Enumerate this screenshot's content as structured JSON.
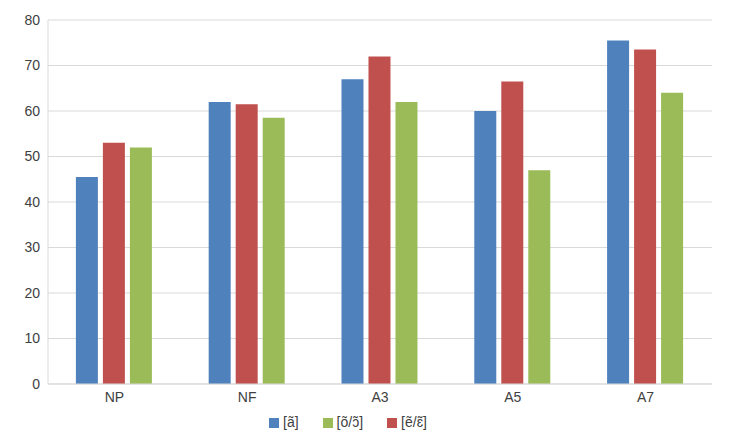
{
  "chart_data": {
    "type": "bar",
    "categories": [
      "NP",
      "NF",
      "A3",
      "A5",
      "A7"
    ],
    "series": [
      {
        "name": "[ã]",
        "color": "#4f81bd",
        "values": [
          45.5,
          62,
          67,
          60,
          75.5
        ]
      },
      {
        "name": "[ẽ/ɛ̃]",
        "color": "#c0504d",
        "values": [
          53,
          61.5,
          72,
          66.5,
          73.5
        ]
      },
      {
        "name": "[õ/ɔ̃]",
        "color": "#9bbb59",
        "values": [
          52,
          58.5,
          62,
          47,
          64
        ]
      }
    ],
    "ylim": [
      0,
      80
    ],
    "yticks": [
      0,
      10,
      20,
      30,
      40,
      50,
      60,
      70,
      80
    ],
    "grid": true,
    "legend": "bottom"
  }
}
